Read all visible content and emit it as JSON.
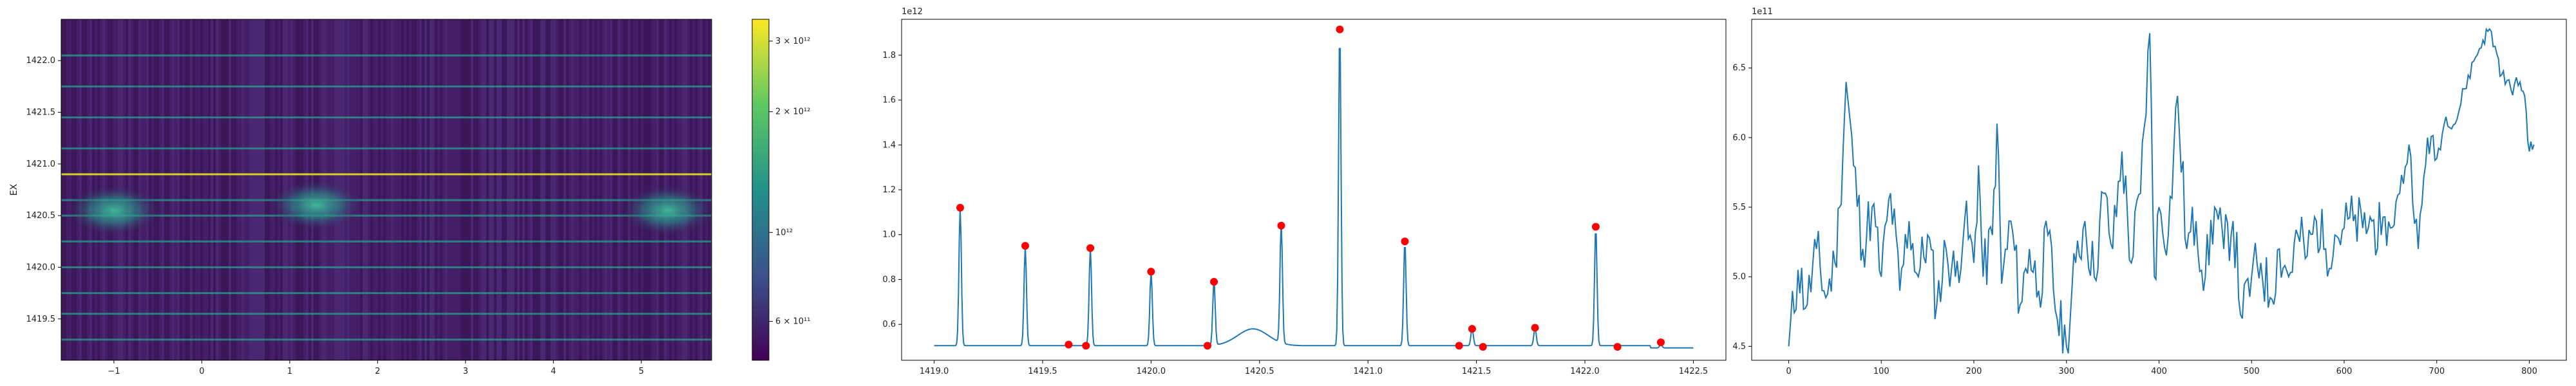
{
  "colors": {
    "line": "#1f77b4",
    "peak": "#ff0000",
    "heat_bg": "#3b1a5a",
    "heat_line": "#2a9d8f",
    "heat_bright": "#e6e419"
  },
  "chart_data": [
    {
      "type": "heatmap",
      "xlabel": "",
      "ylabel": "EX",
      "xlim": [
        -1.6,
        5.8
      ],
      "ylim": [
        1419.1,
        1422.4
      ],
      "x_ticks": [
        -1,
        0,
        1,
        2,
        3,
        4,
        5
      ],
      "x_tick_labels": [
        "−1",
        "0",
        "1",
        "2",
        "3",
        "4",
        "5"
      ],
      "y_ticks": [
        1419.5,
        1420.0,
        1420.5,
        1421.0,
        1421.5,
        1422.0
      ],
      "y_tick_labels": [
        "1419.5",
        "1420.0",
        "1420.5",
        "1421.0",
        "1421.5",
        "1422.0"
      ],
      "bright_rows": [
        1419.3,
        1419.55,
        1419.75,
        1420.0,
        1420.25,
        1420.5,
        1420.65,
        1420.9,
        1421.15,
        1421.45,
        1421.75,
        1422.05
      ],
      "brightest_row": 1420.9,
      "blobs": [
        {
          "x": -1.0,
          "y": 1420.55
        },
        {
          "x": 1.3,
          "y": 1420.6
        },
        {
          "x": 5.3,
          "y": 1420.55
        }
      ],
      "colorbar": {
        "scale": "log",
        "range": [
          480000000000,
          3400000000000
        ],
        "ticks": [
          600000000000,
          1000000000000,
          2000000000000,
          3000000000000
        ],
        "tick_labels": [
          "6 × 10¹¹",
          "10¹²",
          "2 × 10¹²",
          "3 × 10¹²"
        ]
      }
    },
    {
      "type": "line",
      "offset_text": "1e12",
      "xlim": [
        1418.85,
        1422.65
      ],
      "ylim": [
        0.44,
        1.96
      ],
      "x_ticks": [
        1419.0,
        1419.5,
        1420.0,
        1420.5,
        1421.0,
        1421.5,
        1422.0,
        1422.5
      ],
      "x_tick_labels": [
        "1419.0",
        "1419.5",
        "1420.0",
        "1420.5",
        "1421.0",
        "1421.5",
        "1422.0",
        "1422.5"
      ],
      "y_ticks": [
        0.6,
        0.8,
        1.0,
        1.2,
        1.4,
        1.6,
        1.8
      ],
      "y_tick_labels": [
        "0.6",
        "0.8",
        "1.0",
        "1.2",
        "1.4",
        "1.6",
        "1.8"
      ],
      "x_range": [
        1419.0,
        1422.5
      ],
      "baseline": 0.505,
      "peaks": [
        {
          "x": 1419.12,
          "y": 1.12
        },
        {
          "x": 1419.42,
          "y": 0.95
        },
        {
          "x": 1419.72,
          "y": 0.94
        },
        {
          "x": 1420.0,
          "y": 0.835
        },
        {
          "x": 1420.29,
          "y": 0.79
        },
        {
          "x": 1420.6,
          "y": 1.04
        },
        {
          "x": 1420.87,
          "y": 1.915
        },
        {
          "x": 1421.17,
          "y": 0.97
        },
        {
          "x": 1421.48,
          "y": 0.58
        },
        {
          "x": 1421.77,
          "y": 0.585
        },
        {
          "x": 1422.05,
          "y": 1.035
        },
        {
          "x": 1422.35,
          "y": 0.52
        }
      ],
      "bump": {
        "x": 1420.47,
        "y": 0.58,
        "width": 0.1
      },
      "markers": [
        {
          "x": 1419.12,
          "y": 1.12
        },
        {
          "x": 1419.42,
          "y": 0.95
        },
        {
          "x": 1419.62,
          "y": 0.51
        },
        {
          "x": 1419.7,
          "y": 0.505
        },
        {
          "x": 1419.72,
          "y": 0.94
        },
        {
          "x": 1420.0,
          "y": 0.835
        },
        {
          "x": 1420.26,
          "y": 0.505
        },
        {
          "x": 1420.29,
          "y": 0.79
        },
        {
          "x": 1420.6,
          "y": 1.04
        },
        {
          "x": 1420.87,
          "y": 1.915
        },
        {
          "x": 1421.17,
          "y": 0.97
        },
        {
          "x": 1421.42,
          "y": 0.505
        },
        {
          "x": 1421.48,
          "y": 0.58
        },
        {
          "x": 1421.53,
          "y": 0.5
        },
        {
          "x": 1421.77,
          "y": 0.585
        },
        {
          "x": 1422.05,
          "y": 1.035
        },
        {
          "x": 1422.15,
          "y": 0.5
        },
        {
          "x": 1422.35,
          "y": 0.52
        }
      ]
    },
    {
      "type": "line",
      "offset_text": "1e11",
      "xlim": [
        -40,
        840
      ],
      "ylim": [
        4.4,
        6.85
      ],
      "x_ticks": [
        0,
        100,
        200,
        300,
        400,
        500,
        600,
        700,
        800
      ],
      "x_tick_labels": [
        "0",
        "100",
        "200",
        "300",
        "400",
        "500",
        "600",
        "700",
        "800"
      ],
      "y_ticks": [
        4.5,
        5.0,
        5.5,
        6.0,
        6.5
      ],
      "y_tick_labels": [
        "4.5",
        "5.0",
        "5.5",
        "6.0",
        "6.5"
      ],
      "points": [
        [
          0,
          4.5
        ],
        [
          10,
          5.05
        ],
        [
          20,
          4.8
        ],
        [
          30,
          5.2
        ],
        [
          40,
          4.85
        ],
        [
          50,
          5.1
        ],
        [
          55,
          5.5
        ],
        [
          62,
          6.4
        ],
        [
          70,
          5.8
        ],
        [
          80,
          5.2
        ],
        [
          90,
          5.5
        ],
        [
          100,
          5.0
        ],
        [
          110,
          5.6
        ],
        [
          120,
          4.9
        ],
        [
          130,
          5.4
        ],
        [
          140,
          5.0
        ],
        [
          150,
          5.3
        ],
        [
          160,
          4.8
        ],
        [
          170,
          5.2
        ],
        [
          180,
          5.0
        ],
        [
          190,
          5.4
        ],
        [
          200,
          5.1
        ],
        [
          205,
          5.8
        ],
        [
          210,
          5.0
        ],
        [
          220,
          5.3
        ],
        [
          225,
          6.1
        ],
        [
          230,
          4.95
        ],
        [
          240,
          5.4
        ],
        [
          250,
          4.8
        ],
        [
          260,
          5.2
        ],
        [
          270,
          4.9
        ],
        [
          280,
          5.3
        ],
        [
          290,
          4.7
        ],
        [
          300,
          4.5
        ],
        [
          310,
          5.1
        ],
        [
          320,
          5.4
        ],
        [
          330,
          5.0
        ],
        [
          340,
          5.6
        ],
        [
          350,
          5.2
        ],
        [
          360,
          5.9
        ],
        [
          370,
          5.1
        ],
        [
          380,
          5.6
        ],
        [
          390,
          6.75
        ],
        [
          395,
          5.0
        ],
        [
          400,
          5.5
        ],
        [
          410,
          5.3
        ],
        [
          420,
          6.3
        ],
        [
          430,
          5.2
        ],
        [
          440,
          5.4
        ],
        [
          450,
          5.0
        ],
        [
          460,
          5.5
        ],
        [
          470,
          5.2
        ],
        [
          480,
          5.4
        ],
        [
          490,
          4.7
        ],
        [
          500,
          5.0
        ],
        [
          510,
          5.1
        ],
        [
          520,
          4.85
        ],
        [
          530,
          5.2
        ],
        [
          540,
          5.0
        ],
        [
          550,
          5.3
        ],
        [
          560,
          5.15
        ],
        [
          570,
          5.4
        ],
        [
          580,
          5.2
        ],
        [
          590,
          5.3
        ],
        [
          600,
          5.35
        ],
        [
          610,
          5.4
        ],
        [
          620,
          5.35
        ],
        [
          630,
          5.4
        ],
        [
          640,
          5.3
        ],
        [
          650,
          5.35
        ],
        [
          660,
          5.6
        ],
        [
          670,
          5.95
        ],
        [
          680,
          5.2
        ],
        [
          690,
          6.0
        ],
        [
          700,
          5.85
        ],
        [
          710,
          6.15
        ],
        [
          720,
          6.1
        ],
        [
          730,
          6.35
        ],
        [
          740,
          6.55
        ],
        [
          750,
          6.7
        ],
        [
          757,
          6.78
        ],
        [
          765,
          6.6
        ],
        [
          770,
          6.45
        ],
        [
          780,
          6.35
        ],
        [
          790,
          6.4
        ],
        [
          795,
          6.3
        ],
        [
          800,
          5.9
        ],
        [
          805,
          5.95
        ]
      ]
    }
  ]
}
